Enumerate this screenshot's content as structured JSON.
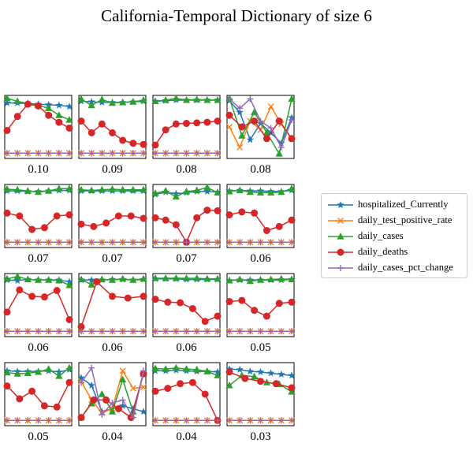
{
  "title": "California-Temporal Dictionary of size 6",
  "colors": {
    "hospitalized_Currently": "#1f77b4",
    "daily_test_positive_rate": "#ff7f0e",
    "daily_cases": "#2ca02c",
    "daily_deaths": "#d62728",
    "daily_cases_pct_change": "#9467bd"
  },
  "legend": [
    {
      "name": "hospitalized_Currently",
      "marker": "star",
      "color": "#1f77b4"
    },
    {
      "name": "daily_test_positive_rate",
      "marker": "x",
      "color": "#ff7f0e"
    },
    {
      "name": "daily_cases",
      "marker": "triangle",
      "color": "#2ca02c"
    },
    {
      "name": "daily_deaths",
      "marker": "circle",
      "color": "#d62728"
    },
    {
      "name": "daily_cases_pct_change",
      "marker": "plus",
      "color": "#9467bd"
    }
  ],
  "chart_data": {
    "type": "line",
    "grid": false,
    "legend_position": "right",
    "x": [
      0,
      1,
      2,
      3,
      4,
      5,
      6
    ],
    "ylim": [
      0,
      1
    ],
    "series_names": [
      "hospitalized_Currently",
      "daily_test_positive_rate",
      "daily_cases",
      "daily_deaths",
      "daily_cases_pct_change"
    ],
    "panels": [
      {
        "label": "0.10",
        "series": [
          [
            0.91,
            0.91,
            0.9,
            0.89,
            0.88,
            0.87,
            0.85
          ],
          [
            0.05,
            0.05,
            0.05,
            0.05,
            0.05,
            0.05,
            0.05
          ],
          [
            0.99,
            0.94,
            0.9,
            0.87,
            0.82,
            0.7,
            0.62
          ],
          [
            0.44,
            0.68,
            0.89,
            0.86,
            0.7,
            0.58,
            0.48
          ],
          [
            0.05,
            0.05,
            0.05,
            0.05,
            0.05,
            0.05,
            0.05
          ]
        ]
      },
      {
        "label": "0.09",
        "series": [
          [
            0.94,
            0.93,
            0.92,
            0.92,
            0.92,
            0.93,
            0.94
          ],
          [
            0.05,
            0.05,
            0.05,
            0.05,
            0.05,
            0.05,
            0.05
          ],
          [
            0.98,
            0.87,
            0.97,
            0.91,
            0.92,
            0.93,
            0.96
          ],
          [
            0.6,
            0.4,
            0.55,
            0.4,
            0.27,
            0.22,
            0.2
          ],
          [
            0.05,
            0.05,
            0.05,
            0.05,
            0.05,
            0.05,
            0.05
          ]
        ]
      },
      {
        "label": "0.08",
        "series": [
          [
            0.94,
            0.95,
            0.96,
            0.96,
            0.96,
            0.96,
            0.96
          ],
          [
            0.05,
            0.05,
            0.05,
            0.05,
            0.05,
            0.05,
            0.05
          ],
          [
            0.94,
            0.96,
            0.99,
            0.96,
            0.97,
            0.96,
            0.96
          ],
          [
            0.19,
            0.45,
            0.55,
            0.56,
            0.57,
            0.58,
            0.6
          ],
          [
            0.05,
            0.05,
            0.05,
            0.05,
            0.05,
            0.05,
            0.05
          ]
        ]
      },
      {
        "label": "0.08",
        "series": [
          [
            0.95,
            0.75,
            0.28,
            0.56,
            0.4,
            0.22,
            0.66
          ],
          [
            0.5,
            0.15,
            0.6,
            0.45,
            0.85,
            0.55,
            0.3
          ],
          [
            0.99,
            0.35,
            0.75,
            0.4,
            0.04,
            0.98
          ],
          [
            0.7,
            0.5,
            0.6,
            0.3,
            0.6,
            0.3
          ],
          [
            0.98,
            0.82,
            0.98,
            0.6,
            0.48,
            0.15,
            0.62
          ]
        ]
      },
      {
        "label": "0.07",
        "series": [
          [
            0.93,
            0.93,
            0.92,
            0.92,
            0.93,
            0.94,
            0.94
          ],
          [
            0.05,
            0.05,
            0.05,
            0.05,
            0.05,
            0.05,
            0.05
          ],
          [
            0.96,
            0.95,
            0.93,
            0.91,
            0.93,
            0.97,
            0.97
          ],
          [
            0.55,
            0.5,
            0.27,
            0.3,
            0.5,
            0.52
          ],
          [
            0.05,
            0.05,
            0.05,
            0.05,
            0.05,
            0.05,
            0.05
          ]
        ]
      },
      {
        "label": "0.07",
        "series": [
          [
            0.93,
            0.93,
            0.93,
            0.93,
            0.93,
            0.93,
            0.93
          ],
          [
            0.05,
            0.05,
            0.05,
            0.05,
            0.05,
            0.05,
            0.05
          ],
          [
            0.95,
            0.94,
            0.95,
            0.96,
            0.95,
            0.95,
            0.95
          ],
          [
            0.36,
            0.32,
            0.38,
            0.5,
            0.5,
            0.46
          ],
          [
            0.05,
            0.05,
            0.05,
            0.05,
            0.05,
            0.05,
            0.05
          ]
        ]
      },
      {
        "label": "0.07",
        "series": [
          [
            0.87,
            0.91,
            0.88,
            0.9,
            0.92,
            0.92,
            0.91
          ],
          [
            0.05,
            0.05,
            0.05,
            0.05,
            0.05,
            0.05,
            0.05
          ],
          [
            0.89,
            0.93,
            0.83,
            0.92,
            0.94,
            0.99,
            0.9
          ],
          [
            0.47,
            0.43,
            0.35,
            0.05,
            0.47,
            0.6,
            0.59
          ],
          [
            0.05,
            0.05,
            0.05,
            0.05,
            0.05,
            0.05,
            0.05
          ]
        ]
      },
      {
        "label": "0.06",
        "series": [
          [
            0.93,
            0.94,
            0.93,
            0.93,
            0.92,
            0.92,
            0.94
          ],
          [
            0.05,
            0.05,
            0.05,
            0.05,
            0.05,
            0.05,
            0.05
          ],
          [
            0.92,
            0.94,
            0.91,
            0.9,
            0.9,
            0.91,
            0.97
          ],
          [
            0.52,
            0.57,
            0.55,
            0.25,
            0.32,
            0.43
          ],
          [
            0.05,
            0.05,
            0.05,
            0.05,
            0.05,
            0.05,
            0.05
          ]
        ]
      },
      {
        "label": "0.06",
        "series": [
          [
            0.93,
            0.92,
            0.94,
            0.93,
            0.93,
            0.93,
            0.9
          ],
          [
            0.05,
            0.05,
            0.05,
            0.05,
            0.05,
            0.05,
            0.05
          ],
          [
            0.95,
            0.99,
            0.94,
            0.93,
            0.93,
            0.92,
            0.84
          ],
          [
            0.38,
            0.76,
            0.65,
            0.64,
            0.75,
            0.25
          ],
          [
            0.05,
            0.05,
            0.05,
            0.05,
            0.05,
            0.05,
            0.05
          ]
        ]
      },
      {
        "label": "0.06",
        "series": [
          [
            0.93,
            0.93,
            0.93,
            0.94,
            0.94,
            0.93,
            0.94
          ],
          [
            0.05,
            0.05,
            0.05,
            0.05,
            0.05,
            0.05,
            0.05
          ],
          [
            0.94,
            0.85,
            0.94,
            0.93,
            0.95,
            0.93,
            0.95
          ],
          [
            0.13,
            0.9,
            0.65,
            0.62,
            0.65
          ],
          [
            0.05,
            0.05,
            0.05,
            0.05,
            0.05,
            0.05,
            0.05
          ]
        ]
      },
      {
        "label": "0.06",
        "series": [
          [
            0.95,
            0.95,
            0.95,
            0.94,
            0.94,
            0.94,
            0.94
          ],
          [
            0.05,
            0.05,
            0.05,
            0.05,
            0.05,
            0.05,
            0.05
          ],
          [
            0.96,
            0.96,
            0.96,
            0.96,
            0.96,
            0.95,
            0.95
          ],
          [
            0.6,
            0.55,
            0.54,
            0.44,
            0.22,
            0.31
          ],
          [
            0.05,
            0.05,
            0.05,
            0.05,
            0.05,
            0.05,
            0.05
          ]
        ]
      },
      {
        "label": "0.05",
        "series": [
          [
            0.92,
            0.93,
            0.93,
            0.93,
            0.93,
            0.93,
            0.94
          ],
          [
            0.05,
            0.05,
            0.05,
            0.05,
            0.05,
            0.05,
            0.05
          ],
          [
            0.92,
            0.94,
            0.91,
            0.93,
            0.94,
            0.95,
            0.94
          ],
          [
            0.56,
            0.58,
            0.41,
            0.31,
            0.53,
            0.55
          ],
          [
            0.05,
            0.05,
            0.05,
            0.05,
            0.05,
            0.05,
            0.05
          ]
        ]
      },
      {
        "label": "0.05",
        "series": [
          [
            0.9,
            0.89,
            0.89,
            0.89,
            0.9,
            0.88,
            0.92
          ],
          [
            0.05,
            0.05,
            0.05,
            0.05,
            0.05,
            0.05,
            0.05
          ],
          [
            0.87,
            0.85,
            0.86,
            0.88,
            0.93,
            0.81,
            0.95
          ],
          [
            0.64,
            0.42,
            0.55,
            0.3,
            0.28,
            0.7
          ],
          [
            0.05,
            0.05,
            0.05,
            0.05,
            0.05,
            0.05,
            0.05
          ]
        ]
      },
      {
        "label": "0.04",
        "series": [
          [
            0.78,
            0.65,
            0.2,
            0.25,
            0.3,
            0.25,
            0.2
          ],
          [
            0.72,
            0.4,
            0.18,
            0.25,
            0.9,
            0.6,
            0.62
          ],
          [
            0.1,
            0.34,
            0.5,
            0.2,
            0.75,
            0.2,
            0.85
          ],
          [
            0.1,
            0.4,
            0.4,
            0.25,
            0.1,
            0.85
          ],
          [
            0.7,
            0.95,
            0.15,
            0.35,
            0.4,
            0.1,
            0.9
          ]
        ]
      },
      {
        "label": "0.04",
        "series": [
          [
            0.9,
            0.9,
            0.91,
            0.9,
            0.89,
            0.89,
            0.88
          ],
          [
            0.05,
            0.05,
            0.05,
            0.05,
            0.05,
            0.05,
            0.05
          ],
          [
            0.94,
            0.93,
            0.95,
            0.93,
            0.92,
            0.89,
            0.82
          ],
          [
            0.55,
            0.6,
            0.68,
            0.7,
            0.5,
            0.05
          ],
          [
            0.05,
            0.05,
            0.05,
            0.05,
            0.05,
            0.05,
            0.05
          ]
        ]
      },
      {
        "label": "0.03",
        "series": [
          [
            0.93,
            0.92,
            0.89,
            0.88,
            0.86,
            0.84,
            0.82
          ],
          [
            0.05,
            0.05,
            0.05,
            0.05,
            0.05,
            0.05,
            0.05
          ],
          [
            0.65,
            0.82,
            0.8,
            0.7,
            0.67,
            0.54
          ],
          [
            0.88,
            0.77,
            0.72,
            0.68,
            0.61
          ],
          [
            0.05,
            0.05,
            0.05,
            0.05,
            0.05,
            0.05,
            0.05
          ]
        ]
      }
    ]
  }
}
